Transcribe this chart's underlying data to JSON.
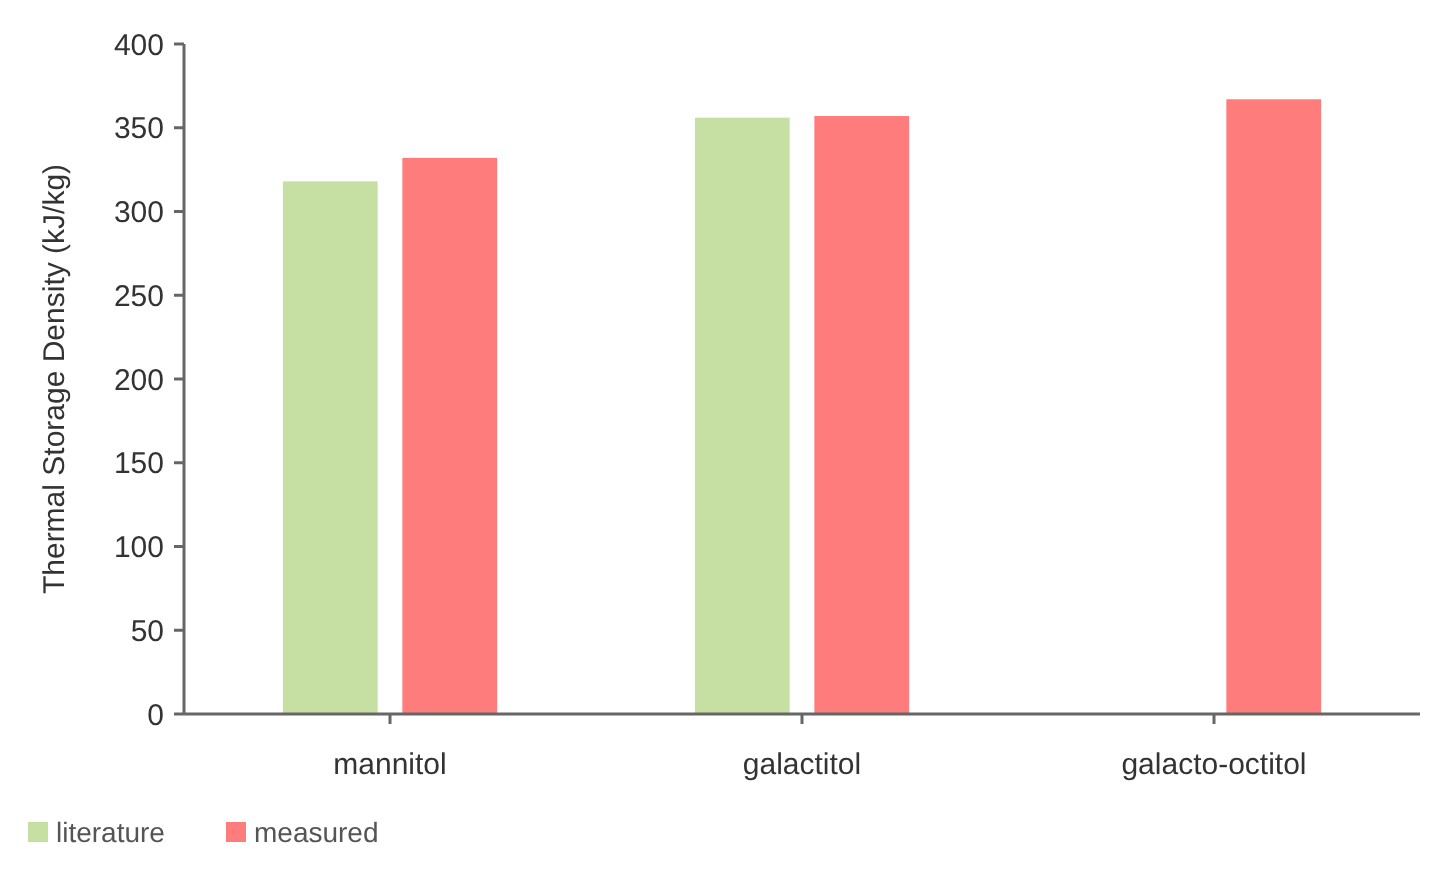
{
  "chart_data": {
    "type": "bar",
    "ylabel": "Thermal Storage Density (kJ/kg)",
    "categories": [
      "mannitol",
      "galactitol",
      "galacto-octitol"
    ],
    "series": [
      {
        "name": "literature",
        "color": "#c6e0a4",
        "values": [
          318,
          356,
          null
        ]
      },
      {
        "name": "measured",
        "color": "#ff7c7c",
        "values": [
          332,
          357,
          367
        ]
      }
    ],
    "ylim": [
      0,
      400
    ],
    "yticks": [
      0,
      50,
      100,
      150,
      200,
      250,
      300,
      350,
      400
    ],
    "grid": false,
    "legend": "bottom left"
  }
}
